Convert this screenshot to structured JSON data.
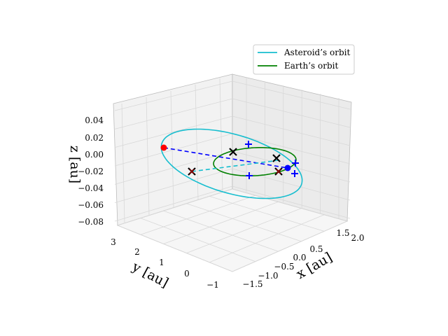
{
  "chart_data": {
    "type": "line",
    "projection": "3d",
    "axes": {
      "x": {
        "label": "x [au]",
        "range": [
          -1.8,
          2.2
        ],
        "ticks": [
          -1.5,
          -1.0,
          -0.5,
          0.0,
          0.5,
          1.5,
          2.0
        ],
        "tick_labels": [
          "−1.5",
          "−1.0",
          "−0.5",
          "0.0",
          "0.5",
          "1.5",
          "2.0"
        ]
      },
      "y": {
        "label": "y [au]",
        "range": [
          -1.2,
          3.2
        ],
        "ticks": [
          -1,
          0,
          1,
          2,
          3
        ],
        "tick_labels": [
          "−1",
          "0",
          "1",
          "2",
          "3"
        ]
      },
      "z": {
        "label": "z [au]",
        "range": [
          -0.085,
          0.05
        ],
        "ticks": [
          -0.08,
          -0.06,
          -0.04,
          -0.02,
          0.0,
          0.02,
          0.04
        ],
        "tick_labels": [
          "−0.08",
          "−0.06",
          "−0.04",
          "−0.02",
          "0.00",
          "0.02",
          "0.04"
        ]
      }
    },
    "grid": true,
    "legend_position": "top-right",
    "series": [
      {
        "name": "Asteroid's orbit",
        "color": "#17becf",
        "kind": "ellipse",
        "semi_major_axis": 1.8,
        "eccentricity": 0.45,
        "inclination_deg": 1.6
      },
      {
        "name": "Earth's orbit",
        "color": "#008000",
        "kind": "circle",
        "radius": 1.0
      }
    ],
    "markers": [
      {
        "label": "asteroid-position",
        "symbol": "dot",
        "color": "#ff0000"
      },
      {
        "label": "earth-position",
        "symbol": "dot",
        "color": "#0000ff"
      },
      {
        "label": "cross",
        "symbol": "x",
        "color": "#000000"
      },
      {
        "label": "cross",
        "symbol": "x",
        "color": "#000000"
      },
      {
        "label": "cross-red",
        "symbol": "x",
        "color": "#8b0000"
      },
      {
        "label": "cross-red",
        "symbol": "x",
        "color": "#8b0000"
      },
      {
        "label": "plus",
        "symbol": "+",
        "color": "#0000ff"
      },
      {
        "label": "plus",
        "symbol": "+",
        "color": "#0000ff"
      },
      {
        "label": "plus",
        "symbol": "+",
        "color": "#0000ff"
      },
      {
        "label": "plus",
        "symbol": "+",
        "color": "#0000ff"
      }
    ],
    "lines": [
      {
        "label": "line-of-sight",
        "style": "dashed",
        "color": "#0000ff"
      },
      {
        "label": "line-of-sight",
        "style": "dashed",
        "color": "#17becf"
      }
    ]
  },
  "legend": {
    "items": [
      {
        "label": "Asteroid’s orbit",
        "color": "#17becf"
      },
      {
        "label": "Earth’s orbit",
        "color": "#008000"
      }
    ]
  }
}
